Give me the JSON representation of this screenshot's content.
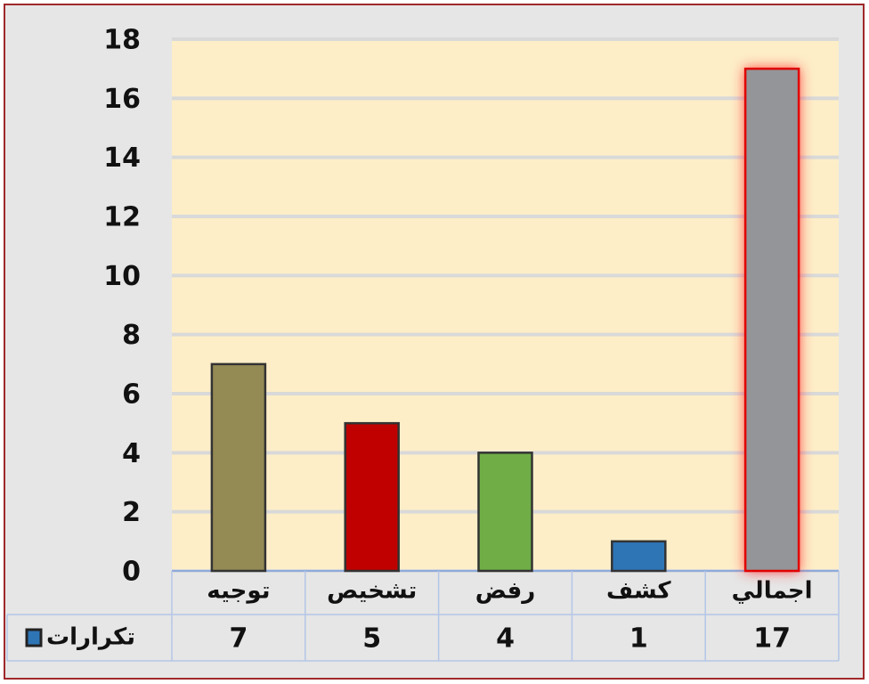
{
  "chart_data": {
    "type": "bar",
    "categories": [
      "توجيه",
      "تشخيص",
      "رفض",
      "كشف",
      "اجمالي"
    ],
    "series": [
      {
        "name": "تكرارات",
        "color": "#2e75b6",
        "values": [
          7,
          5,
          4,
          1,
          17
        ]
      }
    ],
    "bar_colors": [
      "#948a54",
      "#c00000",
      "#70ad47",
      "#2e75b6",
      "#939598"
    ],
    "ylim": [
      0,
      18
    ],
    "yticks": [
      0,
      2,
      4,
      6,
      8,
      10,
      12,
      14,
      16,
      18
    ],
    "grid": true,
    "data_table": true
  }
}
